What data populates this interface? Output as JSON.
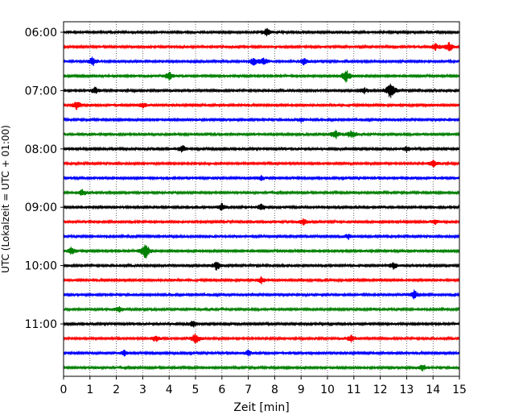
{
  "chart_data": {
    "type": "line",
    "subtype": "helicorder",
    "title": "",
    "xlabel": "Zeit  [min]",
    "ylabel": "UTC (Lokalzeit = UTC + 01:00)",
    "xlim": [
      0,
      15
    ],
    "xticks": [
      0,
      1,
      2,
      3,
      4,
      5,
      6,
      7,
      8,
      9,
      10,
      11,
      12,
      13,
      14,
      15
    ],
    "xgrid": "dotted",
    "yticks": [
      {
        "label": "06:00",
        "row": 0
      },
      {
        "label": "07:00",
        "row": 4
      },
      {
        "label": "08:00",
        "row": 8
      },
      {
        "label": "09:00",
        "row": 12
      },
      {
        "label": "10:00",
        "row": 16
      },
      {
        "label": "11:00",
        "row": 20
      }
    ],
    "row_minutes": 15,
    "colors": [
      "#000000",
      "#ff0000",
      "#0000ff",
      "#008000"
    ],
    "series": [
      {
        "start": "06:00",
        "events": [
          [
            7.7,
            0.7
          ]
        ]
      },
      {
        "start": "06:15",
        "events": [
          [
            14.1,
            0.6
          ],
          [
            14.6,
            0.9
          ]
        ]
      },
      {
        "start": "06:30",
        "events": [
          [
            1.1,
            0.8
          ],
          [
            7.2,
            0.8
          ],
          [
            7.6,
            0.6
          ],
          [
            9.1,
            0.6
          ]
        ]
      },
      {
        "start": "06:45",
        "events": [
          [
            4.0,
            0.8
          ],
          [
            10.7,
            1.2
          ]
        ]
      },
      {
        "start": "07:00",
        "events": [
          [
            1.2,
            0.6
          ],
          [
            11.4,
            0.5
          ],
          [
            12.4,
            1.8
          ]
        ]
      },
      {
        "start": "07:15",
        "events": [
          [
            0.5,
            0.8
          ],
          [
            3.0,
            0.5
          ]
        ]
      },
      {
        "start": "07:30",
        "events": [
          [
            9.0,
            0.4
          ]
        ]
      },
      {
        "start": "07:45",
        "events": [
          [
            10.3,
            0.8
          ],
          [
            10.9,
            0.7
          ]
        ]
      },
      {
        "start": "08:00",
        "events": [
          [
            4.5,
            0.6
          ],
          [
            13.0,
            0.5
          ]
        ]
      },
      {
        "start": "08:15",
        "events": [
          [
            14.0,
            0.6
          ]
        ]
      },
      {
        "start": "08:30",
        "events": [
          [
            7.5,
            0.4
          ]
        ]
      },
      {
        "start": "08:45",
        "events": [
          [
            0.7,
            0.6
          ]
        ]
      },
      {
        "start": "09:00",
        "events": [
          [
            6.0,
            0.7
          ],
          [
            7.5,
            0.6
          ]
        ]
      },
      {
        "start": "09:15",
        "events": [
          [
            9.1,
            0.6
          ],
          [
            14.1,
            0.5
          ]
        ]
      },
      {
        "start": "09:30",
        "events": [
          [
            10.8,
            0.5
          ]
        ]
      },
      {
        "start": "09:45",
        "events": [
          [
            3.1,
            1.6
          ],
          [
            0.3,
            0.6
          ]
        ]
      },
      {
        "start": "10:00",
        "events": [
          [
            5.8,
            0.8
          ],
          [
            12.5,
            0.6
          ]
        ]
      },
      {
        "start": "10:15",
        "events": [
          [
            7.5,
            0.6
          ]
        ]
      },
      {
        "start": "10:30",
        "events": [
          [
            13.3,
            0.8
          ]
        ]
      },
      {
        "start": "10:45",
        "events": [
          [
            2.1,
            0.5
          ]
        ]
      },
      {
        "start": "11:00",
        "events": [
          [
            4.9,
            0.6
          ]
        ]
      },
      {
        "start": "11:15",
        "events": [
          [
            5.0,
            1.0
          ],
          [
            3.5,
            0.6
          ],
          [
            10.9,
            0.6
          ]
        ]
      },
      {
        "start": "11:30",
        "events": [
          [
            2.3,
            0.5
          ],
          [
            7.0,
            0.5
          ]
        ]
      },
      {
        "start": "11:45",
        "events": [
          [
            13.6,
            0.6
          ]
        ]
      }
    ]
  }
}
